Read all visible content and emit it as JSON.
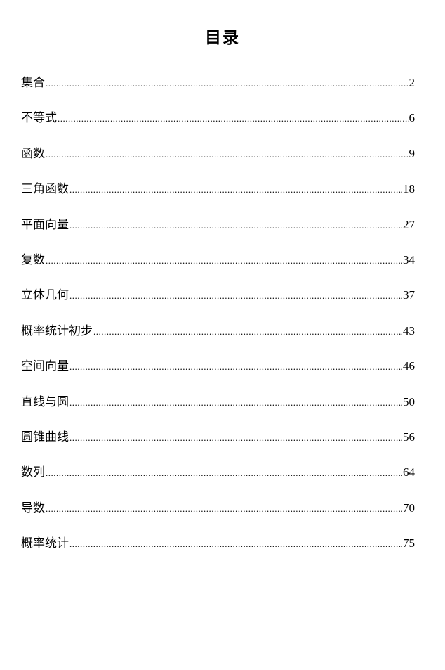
{
  "title": "目录",
  "entries": [
    {
      "label": "集合",
      "page": "2"
    },
    {
      "label": "不等式",
      "page": "6"
    },
    {
      "label": "函数",
      "page": "9"
    },
    {
      "label": "三角函数",
      "page": "18"
    },
    {
      "label": "平面向量",
      "page": "27"
    },
    {
      "label": "复数",
      "page": "34"
    },
    {
      "label": "立体几何",
      "page": "37"
    },
    {
      "label": "概率统计初步",
      "page": "43"
    },
    {
      "label": "空间向量",
      "page": "46"
    },
    {
      "label": "直线与圆",
      "page": "50"
    },
    {
      "label": "圆锥曲线",
      "page": "56"
    },
    {
      "label": "数列",
      "page": "64"
    },
    {
      "label": "导数",
      "page": "70"
    },
    {
      "label": "概率统计",
      "page": "75"
    }
  ]
}
